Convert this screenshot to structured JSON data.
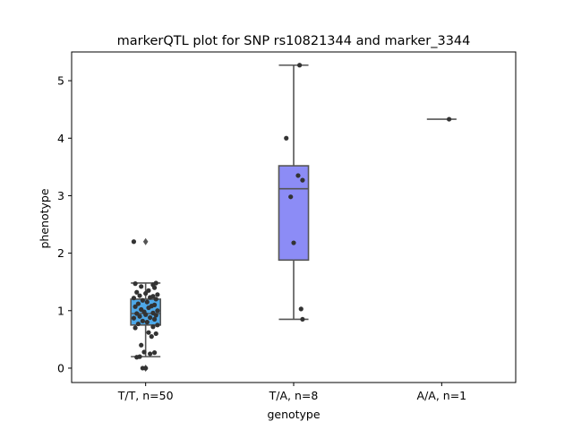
{
  "chart_data": {
    "type": "box",
    "title": "markerQTL plot for SNP rs10821344 and marker_3344",
    "xlabel": "genotype",
    "ylabel": "phenotype",
    "ylim": [
      -0.25,
      5.5
    ],
    "yticks": [
      0,
      1,
      2,
      3,
      4,
      5
    ],
    "grid": false,
    "categories": [
      "T/T, n=50",
      "T/A, n=8",
      "A/A, n=1"
    ],
    "colors": [
      "#4ea8e8",
      "#8c8cf6",
      "#c8a0f0"
    ],
    "point_color": "#333333",
    "box_edge_color": "#555555",
    "boxes": [
      {
        "category": "T/T, n=50",
        "whisker_low": 0.2,
        "q1": 0.75,
        "median": 0.95,
        "q3": 1.2,
        "whisker_high": 1.48,
        "outliers": [
          2.2,
          0.0
        ]
      },
      {
        "category": "T/A, n=8",
        "whisker_low": 0.85,
        "q1": 1.88,
        "median": 3.12,
        "q3": 3.52,
        "whisker_high": 5.27,
        "outliers": []
      },
      {
        "category": "A/A, n=1",
        "whisker_low": 4.33,
        "q1": 4.33,
        "median": 4.33,
        "q3": 4.33,
        "whisker_high": 4.33,
        "outliers": []
      }
    ],
    "points": [
      {
        "category": "T/T, n=50",
        "values": [
          2.2,
          0.0,
          0.0,
          0.19,
          0.2,
          0.25,
          0.27,
          0.28,
          0.4,
          0.55,
          0.6,
          0.62,
          0.7,
          0.72,
          0.75,
          0.77,
          0.8,
          0.82,
          0.85,
          0.87,
          0.88,
          0.9,
          0.92,
          0.93,
          0.95,
          0.96,
          0.98,
          1.0,
          1.02,
          1.05,
          1.07,
          1.08,
          1.1,
          1.12,
          1.15,
          1.18,
          1.2,
          1.22,
          1.23,
          1.25,
          1.26,
          1.28,
          1.3,
          1.32,
          1.35,
          1.4,
          1.42,
          1.45,
          1.47,
          1.48
        ],
        "jitter": [
          -0.08,
          -0.02,
          0.0,
          -0.06,
          -0.04,
          0.03,
          0.06,
          -0.01,
          -0.03,
          0.04,
          0.07,
          0.02,
          -0.07,
          0.05,
          0.08,
          -0.05,
          0.01,
          -0.02,
          0.06,
          -0.08,
          0.03,
          -0.04,
          0.07,
          0.0,
          -0.06,
          0.05,
          -0.01,
          0.08,
          -0.03,
          0.02,
          -0.07,
          0.04,
          0.06,
          -0.05,
          0.01,
          -0.02,
          0.07,
          -0.08,
          0.03,
          0.05,
          -0.04,
          0.08,
          0.0,
          -0.06,
          0.02,
          0.06,
          -0.03,
          0.05,
          -0.07,
          0.07
        ]
      },
      {
        "category": "T/A, n=8",
        "values": [
          5.27,
          4.0,
          3.35,
          3.27,
          2.98,
          2.18,
          1.03,
          0.85
        ],
        "jitter": [
          0.04,
          -0.05,
          0.03,
          0.06,
          -0.02,
          0.0,
          0.05,
          0.06
        ]
      },
      {
        "category": "A/A, n=1",
        "values": [
          4.33
        ],
        "jitter": [
          0.05
        ]
      }
    ]
  }
}
